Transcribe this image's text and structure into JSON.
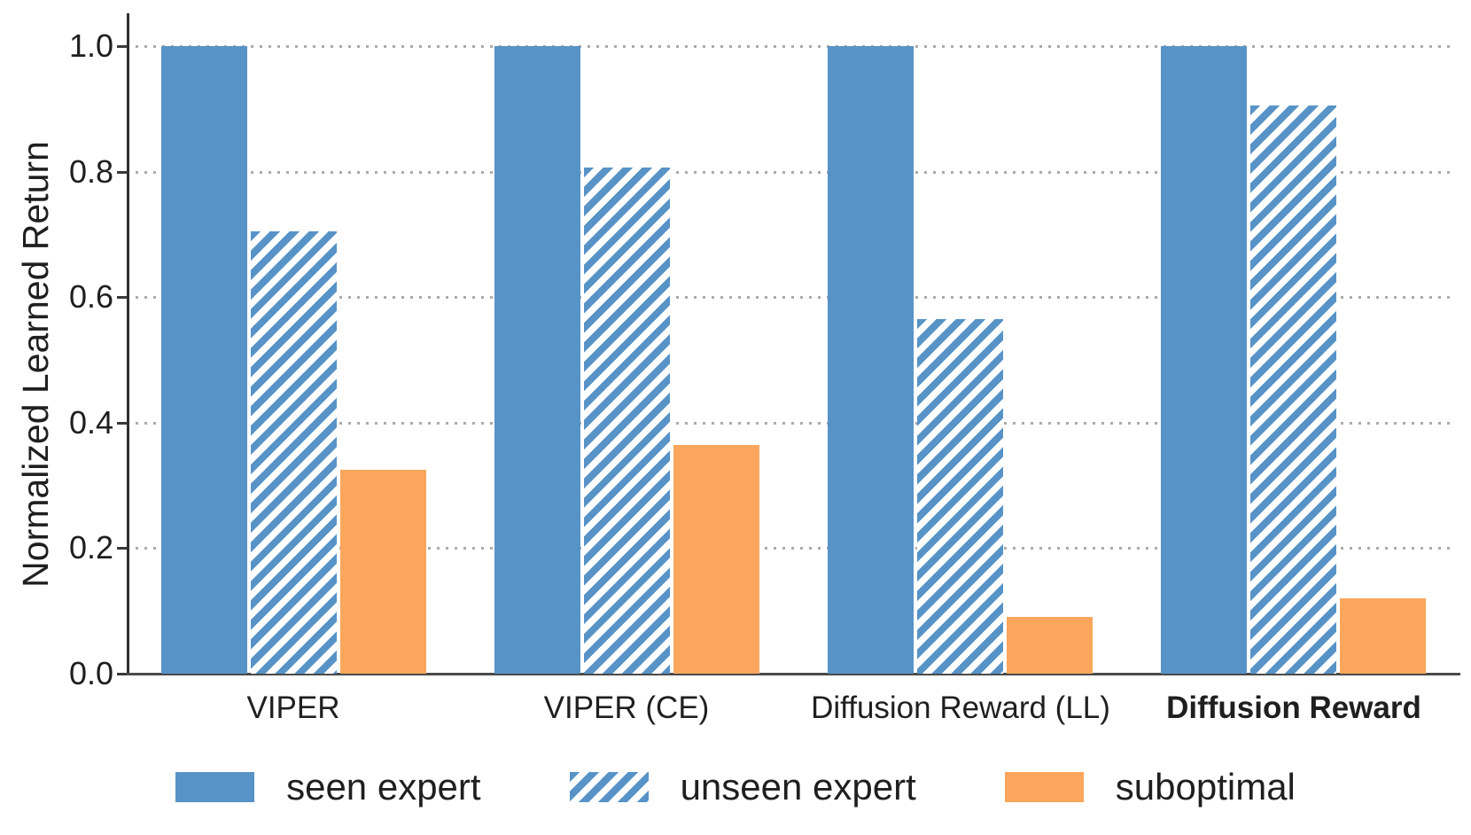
{
  "colors": {
    "blue": "#5793C7",
    "orange": "#FAA65C",
    "hatch_bg": "#FFFFFF",
    "grid": "#ABABAB",
    "spine": "#3A3A3A",
    "text": "#1F1F1F"
  },
  "chart_data": {
    "type": "bar",
    "title": "",
    "xlabel": "",
    "ylabel": "Normalized Learned Return",
    "categories": [
      "VIPER",
      "VIPER (CE)",
      "Diffusion Reward (LL)",
      "Diffusion Reward"
    ],
    "emphasized_category": "Diffusion Reward",
    "series": [
      {
        "name": "seen expert",
        "pattern": "solid",
        "color": "#5793C7",
        "values": [
          1.0,
          1.0,
          1.0,
          1.0
        ]
      },
      {
        "name": "unseen expert",
        "pattern": "hatched",
        "color": "#5793C7",
        "values": [
          0.705,
          0.807,
          0.565,
          0.905
        ]
      },
      {
        "name": "suboptimal",
        "pattern": "solid",
        "color": "#FAA65C",
        "values": [
          0.325,
          0.365,
          0.09,
          0.12
        ]
      }
    ],
    "ylim": [
      0.0,
      1.05
    ],
    "yticks": [
      "0.0",
      "0.2",
      "0.4",
      "0.6",
      "0.8",
      "1.0"
    ],
    "grid": "horizontal-dotted",
    "legend_position": "bottom"
  }
}
